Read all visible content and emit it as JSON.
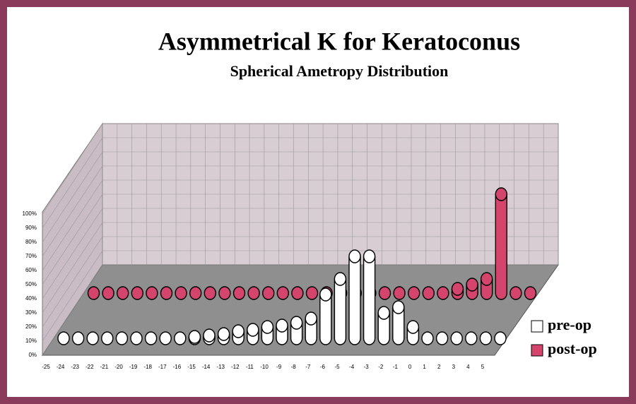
{
  "chart_data": {
    "type": "bar",
    "title": "Asymmetrical K for Keratoconus",
    "subtitle": "Spherical Ametropy Distribution",
    "categories": [
      "-25",
      "-24",
      "-23",
      "-22",
      "-21",
      "-20",
      "-19",
      "-18",
      "-17",
      "-16",
      "-15",
      "-14",
      "-13",
      "-12",
      "-11",
      "-10",
      "-9",
      "-8",
      "-7",
      "-6",
      "-5",
      "-4",
      "-3",
      "-2",
      "-1",
      "0",
      "1",
      "2",
      "3",
      "4",
      "5"
    ],
    "series": [
      {
        "name": "pre-op",
        "color": "#ffffff",
        "values": [
          0,
          0,
          0,
          0,
          0,
          0,
          0,
          0,
          0,
          1,
          2,
          3,
          5,
          6,
          8,
          9,
          11,
          14,
          31,
          42,
          58,
          58,
          18,
          22,
          8,
          0,
          0,
          0,
          0,
          0,
          0
        ]
      },
      {
        "name": "post-op",
        "color": "#d4456e",
        "values": [
          0,
          0,
          0,
          0,
          0,
          0,
          0,
          0,
          0,
          0,
          0,
          0,
          0,
          0,
          0,
          0,
          0,
          0,
          0,
          0,
          0,
          0,
          0,
          0,
          0,
          3,
          6,
          10,
          70,
          0,
          0
        ]
      }
    ],
    "ylim": [
      0,
      100
    ],
    "yticks": [
      {
        "value": 0,
        "label": "0%"
      },
      {
        "value": 10,
        "label": "10%"
      },
      {
        "value": 20,
        "label": "20%"
      },
      {
        "value": 30,
        "label": "30%"
      },
      {
        "value": 40,
        "label": "40%"
      },
      {
        "value": 50,
        "label": "50%"
      },
      {
        "value": 60,
        "label": "60%"
      },
      {
        "value": 70,
        "label": "70%"
      },
      {
        "value": 80,
        "label": "80%"
      },
      {
        "value": 90,
        "label": "90%"
      },
      {
        "value": 100,
        "label": "100%"
      }
    ],
    "grid": true
  }
}
